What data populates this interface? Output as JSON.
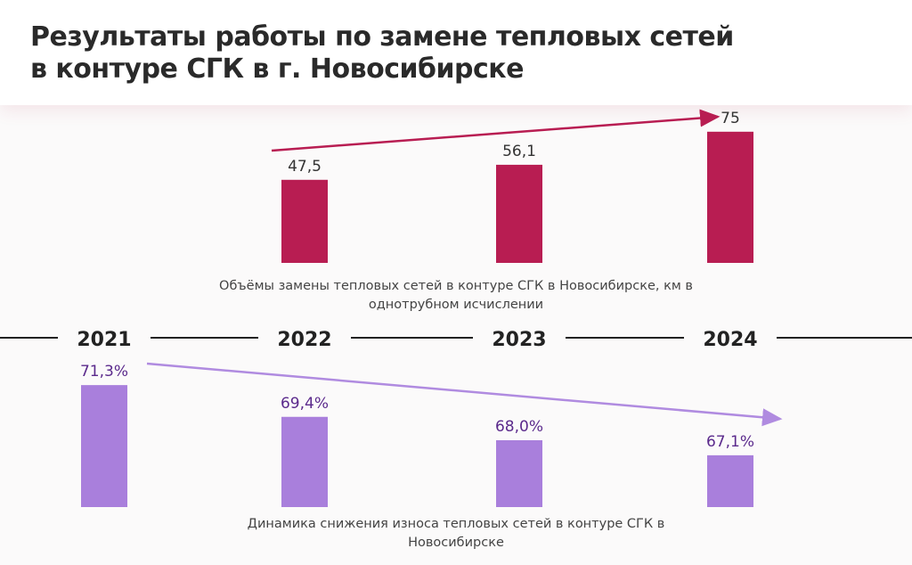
{
  "title": [
    "Результаты работы по замене тепловых сетей",
    "в контуре СГК в г. Новосибирске"
  ],
  "chart_data": {
    "type": "bar",
    "categories": [
      "2021",
      "2022",
      "2023",
      "2024"
    ],
    "series": [
      {
        "name": "Объёмы замены тепловых сетей в контуре СГК в Новосибирске, км в однотрубном исчислении",
        "color": "#b81d52",
        "values": [
          null,
          47.5,
          56.1,
          75
        ],
        "value_labels": [
          null,
          "47,5",
          "56,1",
          "75"
        ],
        "ylim": [
          0,
          80
        ]
      },
      {
        "name": "Динамика снижения износа тепловых сетей в контуре СГК в Новосибирске",
        "color": "#a97fdc",
        "values": [
          71.3,
          69.4,
          68.0,
          67.1
        ],
        "value_labels": [
          "71,3%",
          "69,4%",
          "68,0%",
          "67,1%"
        ],
        "ylim": [
          64,
          72
        ]
      }
    ]
  }
}
